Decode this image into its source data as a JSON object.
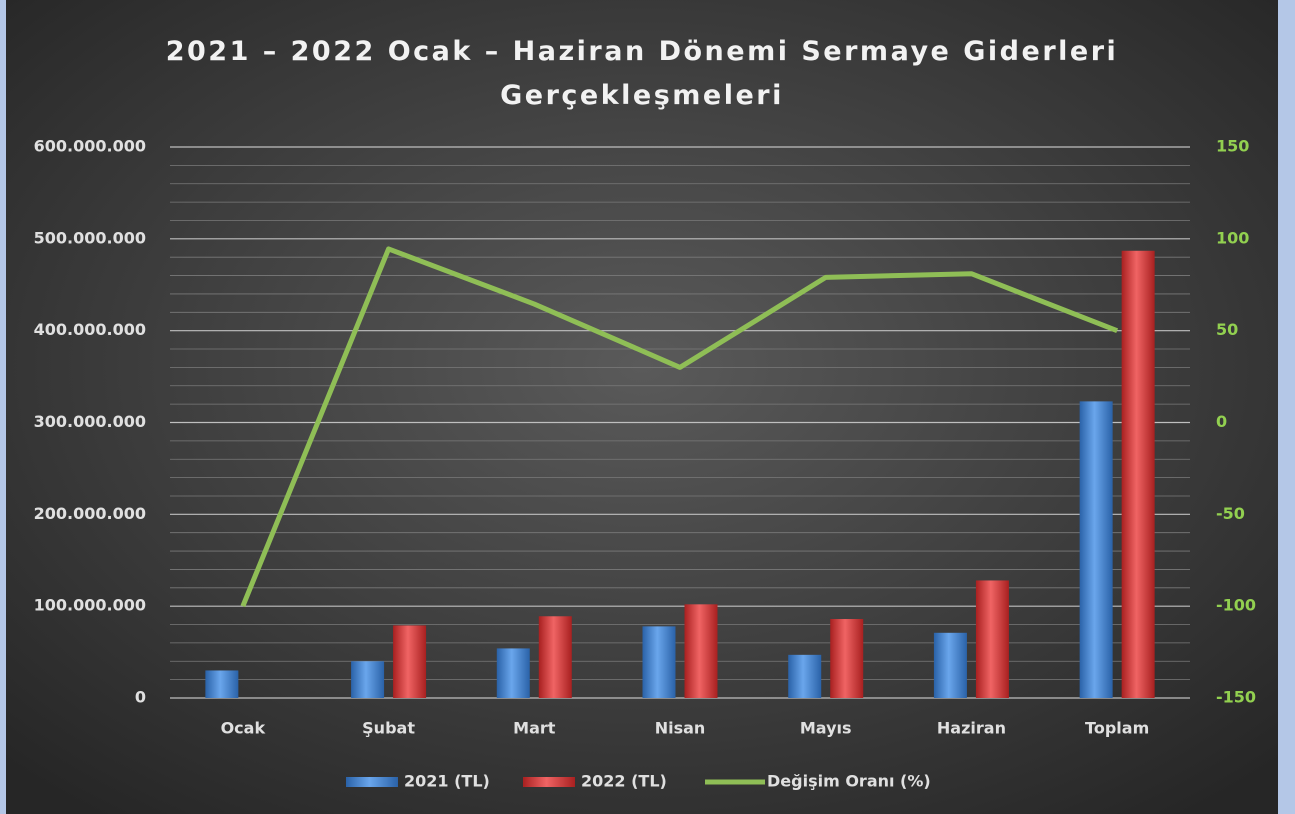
{
  "chart_data": {
    "type": "bar_line",
    "title": "2021 – 2022 Ocak – Haziran Dönemi Sermaye Giderleri Gerçekleşmeleri",
    "categories": [
      "Ocak",
      "Şubat",
      "Mart",
      "Nisan",
      "Mayıs",
      "Haziran",
      "Toplam"
    ],
    "series": [
      {
        "name": "2021 (TL)",
        "type": "bar",
        "color": "#3a7dd0",
        "values": [
          30000000,
          40000000,
          54000000,
          78000000,
          47000000,
          71000000,
          323000000
        ]
      },
      {
        "name": "2022 (TL)",
        "type": "bar",
        "color": "#d93a3a",
        "values": [
          0,
          79000000,
          89000000,
          102000000,
          86000000,
          128000000,
          487000000
        ]
      },
      {
        "name": "Değişim Oranı (%)",
        "type": "line",
        "axis": "y2",
        "color": "#8fbe56",
        "values": [
          -100,
          94.5,
          64.5,
          30,
          79,
          81,
          50
        ]
      }
    ],
    "ylim": [
      0,
      600000000
    ],
    "yticks": [
      0,
      {
        "value": 100000000,
        "label": "100.000.000"
      },
      {
        "value": 200000000,
        "label": "200.000.000"
      },
      {
        "value": 300000000,
        "label": "300.000.000"
      },
      {
        "value": 400000000,
        "label": "400.000.000"
      },
      {
        "value": 500000000,
        "label": "500.000.000"
      },
      {
        "value": 600000000,
        "label": "600.000.000"
      }
    ],
    "yminorticks": [
      20000000,
      40000000,
      60000000,
      80000000,
      120000000,
      140000000,
      160000000,
      180000000,
      220000000,
      240000000,
      260000000,
      280000000,
      320000000,
      340000000,
      360000000,
      380000000,
      420000000,
      440000000,
      460000000,
      480000000,
      520000000,
      540000000,
      560000000,
      580000000
    ],
    "y2lim": [
      -150,
      150
    ],
    "y2ticks": [
      -150,
      -100,
      -50,
      0,
      50,
      100,
      150
    ],
    "y2tick_color": "#92d050",
    "grid": true,
    "legend": "bottom"
  }
}
